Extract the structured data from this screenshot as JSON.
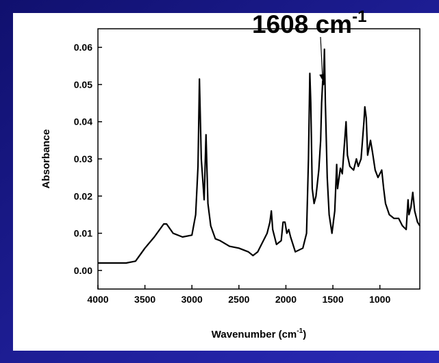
{
  "chart_data": {
    "type": "line",
    "annotation": {
      "text": "1608 cm",
      "superscript": "-1",
      "x": 1608,
      "y": 0.051
    },
    "xlabel": [
      "Wavenumber (cm",
      "-1",
      ")"
    ],
    "ylabel": "Absorbance",
    "xlim": [
      4000,
      575
    ],
    "xticks": [
      4000,
      3500,
      3000,
      2500,
      2000,
      1500,
      1000
    ],
    "ylim": [
      -0.005,
      0.065
    ],
    "yticks": [
      {
        "value": 0,
        "label": "0.00"
      },
      {
        "value": 0.01,
        "label": "0.01"
      },
      {
        "value": 0.02,
        "label": "0.02"
      },
      {
        "value": 0.03,
        "label": "0.03"
      },
      {
        "value": 0.04,
        "label": "0.04"
      },
      {
        "value": 0.05,
        "label": "0.05"
      },
      {
        "value": 0.06,
        "label": "0.06"
      }
    ],
    "series": [
      {
        "color": "#000000",
        "x": [
          4000,
          3700,
          3600,
          3500,
          3400,
          3300,
          3270,
          3200,
          3100,
          3000,
          2960,
          2935,
          2920,
          2900,
          2870,
          2850,
          2830,
          2800,
          2750,
          2700,
          2600,
          2500,
          2400,
          2350,
          2300,
          2200,
          2170,
          2155,
          2140,
          2100,
          2050,
          2030,
          2010,
          1990,
          1970,
          1950,
          1900,
          1820,
          1780,
          1760,
          1745,
          1735,
          1720,
          1700,
          1680,
          1650,
          1630,
          1620,
          1608,
          1600,
          1590,
          1580,
          1560,
          1540,
          1510,
          1480,
          1460,
          1450,
          1420,
          1400,
          1380,
          1360,
          1345,
          1320,
          1280,
          1250,
          1230,
          1200,
          1170,
          1160,
          1145,
          1130,
          1100,
          1080,
          1050,
          1020,
          1000,
          980,
          960,
          940,
          900,
          850,
          800,
          760,
          720,
          700,
          690,
          670,
          650,
          630,
          600,
          575
        ],
        "values": [
          0.002,
          0.002,
          0.0025,
          0.006,
          0.009,
          0.0125,
          0.0125,
          0.01,
          0.009,
          0.0095,
          0.015,
          0.028,
          0.0515,
          0.03,
          0.019,
          0.0365,
          0.018,
          0.012,
          0.0085,
          0.008,
          0.0065,
          0.006,
          0.005,
          0.004,
          0.005,
          0.01,
          0.013,
          0.016,
          0.011,
          0.007,
          0.008,
          0.013,
          0.013,
          0.01,
          0.011,
          0.009,
          0.005,
          0.006,
          0.01,
          0.03,
          0.053,
          0.045,
          0.022,
          0.018,
          0.02,
          0.027,
          0.035,
          0.045,
          0.051,
          0.05,
          0.0595,
          0.045,
          0.025,
          0.015,
          0.01,
          0.016,
          0.0285,
          0.022,
          0.0275,
          0.026,
          0.033,
          0.04,
          0.031,
          0.028,
          0.027,
          0.03,
          0.028,
          0.03,
          0.04,
          0.044,
          0.041,
          0.031,
          0.035,
          0.032,
          0.027,
          0.025,
          0.026,
          0.027,
          0.022,
          0.018,
          0.015,
          0.014,
          0.014,
          0.012,
          0.011,
          0.019,
          0.015,
          0.017,
          0.021,
          0.016,
          0.013,
          0.012
        ]
      }
    ]
  }
}
